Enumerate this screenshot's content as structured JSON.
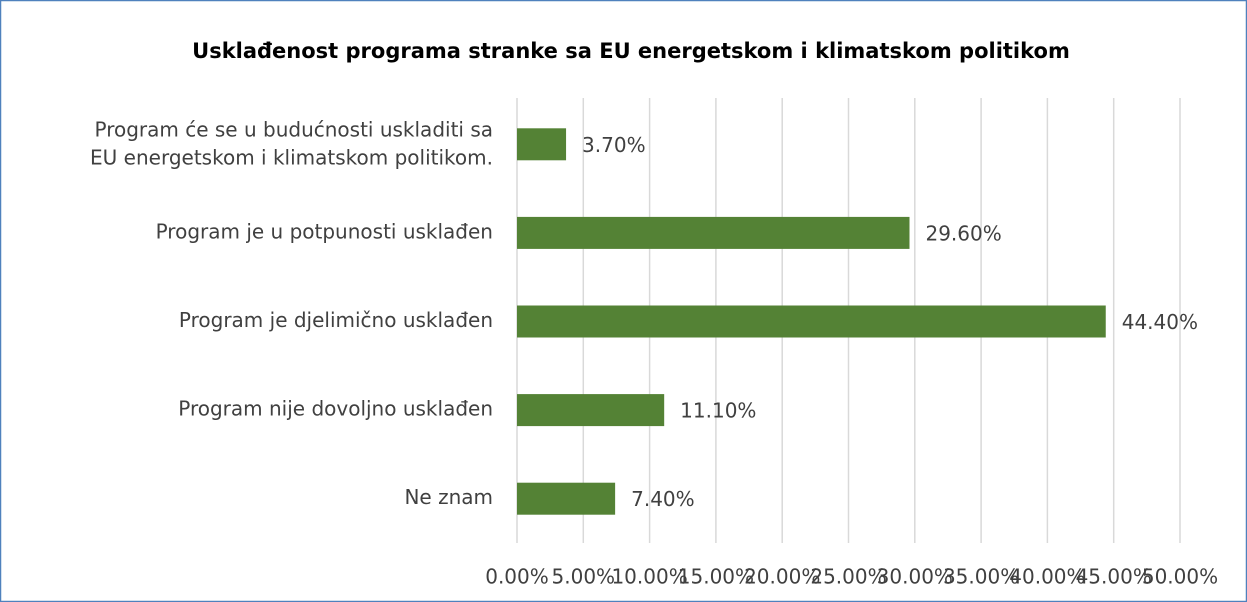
{
  "chart_data": {
    "type": "bar",
    "orientation": "horizontal",
    "title": "Usklađenost programa stranke sa EU energetskom i klimatskom politikom",
    "categories": [
      "Program će se u budućnosti uskladiti sa\nEU energetskom i klimatskom politikom.",
      "Program je u potpunosti usklađen",
      "Program je djelimično usklađen",
      "Program nije dovoljno usklađen",
      "Ne znam"
    ],
    "values": [
      3.7,
      29.6,
      44.4,
      11.1,
      7.4
    ],
    "value_labels": [
      "3.70%",
      "29.60%",
      "44.40%",
      "11.10%",
      "7.40%"
    ],
    "color": "#548235",
    "xlim": [
      0,
      50
    ],
    "xticks": [
      {
        "value": 0,
        "label": "0.00%"
      },
      {
        "value": 5,
        "label": "5.00%"
      },
      {
        "value": 10,
        "label": "10.00%"
      },
      {
        "value": 15,
        "label": "15.00%"
      },
      {
        "value": 20,
        "label": "20.00%"
      },
      {
        "value": 25,
        "label": "25.00%"
      },
      {
        "value": 30,
        "label": "30.00%"
      },
      {
        "value": 35,
        "label": "35.00%"
      },
      {
        "value": 40,
        "label": "40.00%"
      },
      {
        "value": 45,
        "label": "45.00%"
      },
      {
        "value": 50,
        "label": "50.00%"
      }
    ],
    "grid": true
  }
}
